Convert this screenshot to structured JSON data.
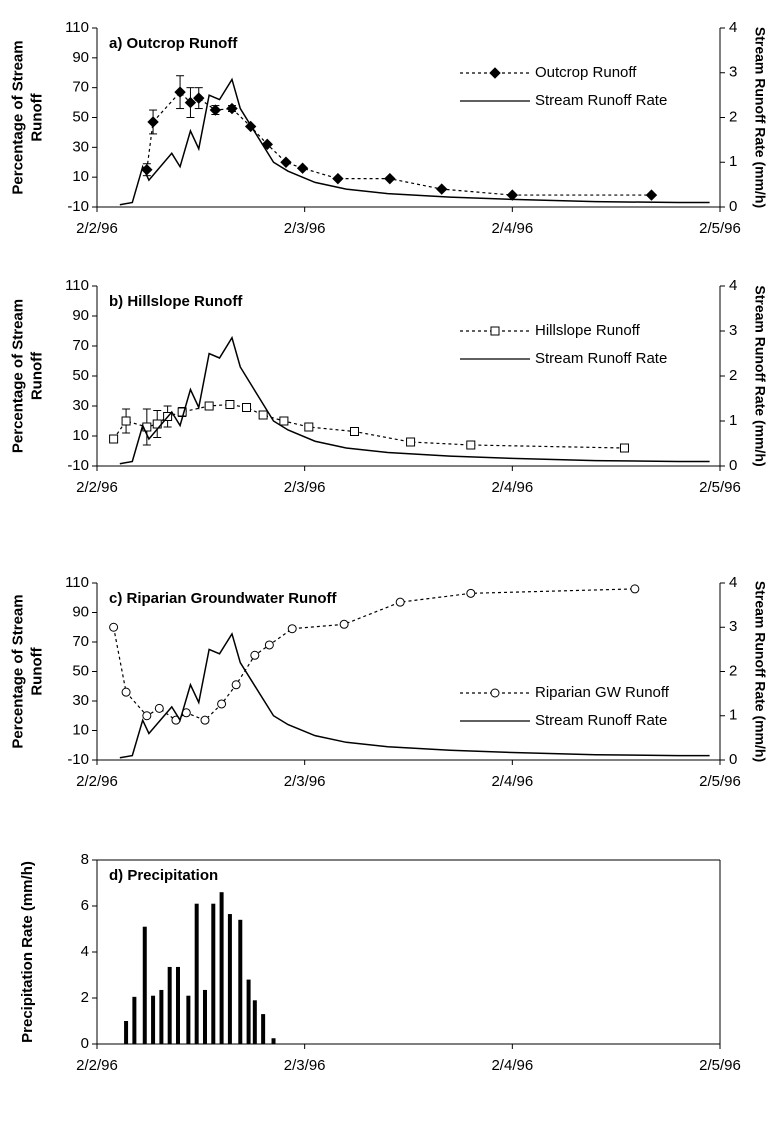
{
  "chart_data": [
    {
      "type": "line",
      "title": "a) Outcrop Runoff",
      "ylabel": [
        "Percentage of Stream",
        "Runoff"
      ],
      "y2label": "Stream Runoff Rate (mm/h)",
      "xlim": [
        0,
        3
      ],
      "xticks": [
        {
          "value": 0,
          "label": "2/2/96"
        },
        {
          "value": 1,
          "label": "2/3/96"
        },
        {
          "value": 2,
          "label": "2/4/96"
        },
        {
          "value": 3,
          "label": "2/5/96"
        }
      ],
      "ylim": [
        -10,
        110
      ],
      "yticks": [
        -10,
        10,
        30,
        50,
        70,
        90,
        110
      ],
      "y2lim": [
        0,
        4
      ],
      "y2ticks": [
        0,
        1,
        2,
        3,
        4
      ],
      "legend": "upper right",
      "series": [
        {
          "name": "Outcrop Runoff",
          "color": "#000000",
          "line_style": "dotted",
          "marker": "diamond",
          "marker_fill": "#000000",
          "x": [
            0.24,
            0.27,
            0.4,
            0.45,
            0.49,
            0.57,
            0.65,
            0.74,
            0.82,
            0.91,
            0.99,
            1.16,
            1.41,
            1.66,
            2.0,
            2.67
          ],
          "values": [
            15,
            47,
            67,
            60,
            63,
            55,
            56,
            44,
            32,
            20,
            16,
            9,
            9,
            2,
            -2,
            -2
          ],
          "errors": [
            4,
            8,
            11,
            10,
            7,
            3,
            2,
            null,
            null,
            null,
            null,
            null,
            null,
            null,
            null,
            null
          ]
        },
        {
          "name": "Stream Runoff Rate",
          "color": "#000000",
          "line_style": "solid",
          "axis": "y2",
          "x": [
            0.11,
            0.17,
            0.22,
            0.25,
            0.36,
            0.4,
            0.45,
            0.49,
            0.54,
            0.59,
            0.65,
            0.69,
            0.75,
            0.85,
            0.92,
            1.05,
            1.2,
            1.4,
            1.7,
            2.0,
            2.4,
            2.8,
            2.95
          ],
          "values": [
            0.05,
            0.1,
            0.9,
            0.6,
            1.2,
            0.9,
            1.7,
            1.3,
            2.5,
            2.4,
            2.85,
            2.2,
            1.75,
            1.0,
            0.8,
            0.55,
            0.4,
            0.3,
            0.22,
            0.17,
            0.12,
            0.1,
            0.1
          ]
        }
      ]
    },
    {
      "type": "line",
      "title": "b) Hillslope Runoff",
      "ylabel": [
        "Percentage of Stream",
        "Runoff"
      ],
      "y2label": "Stream Runoff Rate (mm/h)",
      "xlim": [
        0,
        3
      ],
      "xticks": [
        {
          "value": 0,
          "label": "2/2/96"
        },
        {
          "value": 1,
          "label": "2/3/96"
        },
        {
          "value": 2,
          "label": "2/4/96"
        },
        {
          "value": 3,
          "label": "2/5/96"
        }
      ],
      "ylim": [
        -10,
        110
      ],
      "yticks": [
        -10,
        10,
        30,
        50,
        70,
        90,
        110
      ],
      "y2lim": [
        0,
        4
      ],
      "y2ticks": [
        0,
        1,
        2,
        3,
        4
      ],
      "legend": "upper right",
      "series": [
        {
          "name": "Hillslope Runoff",
          "color": "#000000",
          "line_style": "dotted",
          "marker": "square",
          "marker_fill": "#ffffff",
          "x": [
            0.08,
            0.14,
            0.24,
            0.29,
            0.34,
            0.41,
            0.54,
            0.64,
            0.72,
            0.8,
            0.9,
            1.02,
            1.24,
            1.51,
            1.8,
            2.54
          ],
          "values": [
            8,
            20,
            16,
            18,
            23,
            26,
            30,
            31,
            29,
            24,
            20,
            16,
            13,
            6,
            4,
            2
          ],
          "errors": [
            null,
            8,
            12,
            9,
            7,
            3,
            null,
            null,
            null,
            null,
            null,
            null,
            null,
            null,
            null,
            null
          ]
        },
        {
          "name": "Stream Runoff Rate",
          "color": "#000000",
          "line_style": "solid",
          "axis": "y2",
          "x": [
            0.11,
            0.17,
            0.22,
            0.25,
            0.36,
            0.4,
            0.45,
            0.49,
            0.54,
            0.59,
            0.65,
            0.69,
            0.75,
            0.85,
            0.92,
            1.05,
            1.2,
            1.4,
            1.7,
            2.0,
            2.4,
            2.8,
            2.95
          ],
          "values": [
            0.05,
            0.1,
            0.9,
            0.6,
            1.2,
            0.9,
            1.7,
            1.3,
            2.5,
            2.4,
            2.85,
            2.2,
            1.75,
            1.0,
            0.8,
            0.55,
            0.4,
            0.3,
            0.22,
            0.17,
            0.12,
            0.1,
            0.1
          ]
        }
      ]
    },
    {
      "type": "line",
      "title": "c) Riparian Groundwater Runoff",
      "ylabel": [
        "Percentage of Stream",
        "Runoff"
      ],
      "y2label": "Stream Runoff Rate (mm/h)",
      "xlim": [
        0,
        3
      ],
      "xticks": [
        {
          "value": 0,
          "label": "2/2/96"
        },
        {
          "value": 1,
          "label": "2/3/96"
        },
        {
          "value": 2,
          "label": "2/4/96"
        },
        {
          "value": 3,
          "label": "2/5/96"
        }
      ],
      "ylim": [
        -10,
        110
      ],
      "yticks": [
        -10,
        10,
        30,
        50,
        70,
        90,
        110
      ],
      "y2lim": [
        0,
        4
      ],
      "y2ticks": [
        0,
        1,
        2,
        3,
        4
      ],
      "legend": "center right",
      "series": [
        {
          "name": "Riparian GW Runoff",
          "color": "#000000",
          "line_style": "dotted",
          "marker": "circle",
          "marker_fill": "#ffffff",
          "x": [
            0.08,
            0.14,
            0.24,
            0.3,
            0.38,
            0.43,
            0.52,
            0.6,
            0.67,
            0.76,
            0.83,
            0.94,
            1.19,
            1.46,
            1.8,
            2.59
          ],
          "values": [
            80,
            36,
            20,
            25,
            17,
            22,
            17,
            28,
            41,
            61,
            68,
            79,
            82,
            97,
            103,
            106
          ]
        },
        {
          "name": "Stream Runoff Rate",
          "color": "#000000",
          "line_style": "solid",
          "axis": "y2",
          "x": [
            0.11,
            0.17,
            0.22,
            0.25,
            0.36,
            0.4,
            0.45,
            0.49,
            0.54,
            0.59,
            0.65,
            0.69,
            0.75,
            0.85,
            0.92,
            1.05,
            1.2,
            1.4,
            1.7,
            2.0,
            2.4,
            2.8,
            2.95
          ],
          "values": [
            0.05,
            0.1,
            0.9,
            0.6,
            1.2,
            0.9,
            1.7,
            1.3,
            2.5,
            2.4,
            2.85,
            2.2,
            1.75,
            1.0,
            0.8,
            0.55,
            0.4,
            0.3,
            0.22,
            0.17,
            0.12,
            0.1,
            0.1
          ]
        }
      ]
    },
    {
      "type": "bar",
      "title": "d) Precipitation",
      "ylabel": [
        "Precipitation Rate (mm/h)"
      ],
      "color": "#000000",
      "frame": true,
      "xlim": [
        0,
        3
      ],
      "xticks": [
        {
          "value": 0,
          "label": "2/2/96"
        },
        {
          "value": 1,
          "label": "2/3/96"
        },
        {
          "value": 2,
          "label": "2/4/96"
        },
        {
          "value": 3,
          "label": "2/5/96"
        }
      ],
      "ylim": [
        0,
        8
      ],
      "yticks": [
        0,
        2,
        4,
        6,
        8
      ],
      "x": [
        0.14,
        0.18,
        0.23,
        0.27,
        0.31,
        0.35,
        0.39,
        0.44,
        0.48,
        0.52,
        0.56,
        0.6,
        0.64,
        0.69,
        0.73,
        0.76,
        0.8,
        0.85
      ],
      "values": [
        1.0,
        2.05,
        5.1,
        2.1,
        2.35,
        3.35,
        3.35,
        2.1,
        6.1,
        2.35,
        6.1,
        6.6,
        5.65,
        5.4,
        2.8,
        1.9,
        1.3,
        0.25
      ]
    }
  ]
}
